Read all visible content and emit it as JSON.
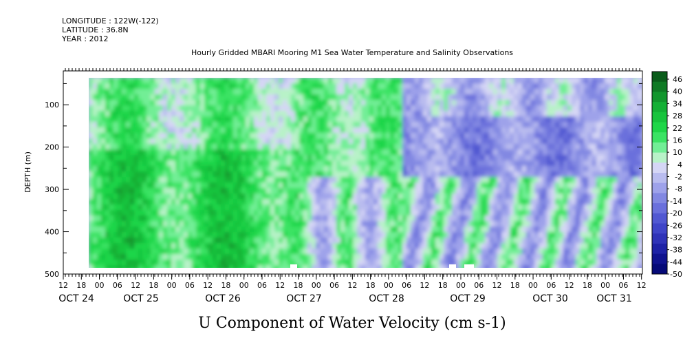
{
  "header": {
    "longitude": "LONGITUDE : 122W(-122)",
    "latitude": "LATITUDE : 36.8N",
    "year": "YEAR : 2012"
  },
  "chart_data": {
    "type": "heatmap",
    "title": "Hourly Gridded MBARI Mooring M1 Sea Water Temperature and Salinity Observations",
    "xlabel": "U Component of Water Velocity (cm s-1)",
    "ylabel": "DEPTH (m)",
    "ylim": [
      500,
      20
    ],
    "y_ticks": [
      100,
      200,
      300,
      400,
      500
    ],
    "x_hour_ticks": [
      "12",
      "18",
      "00",
      "06",
      "12",
      "18",
      "00",
      "06",
      "12",
      "18",
      "00",
      "06",
      "12",
      "18",
      "00",
      "06",
      "12",
      "18",
      "00",
      "06",
      "12",
      "18",
      "00",
      "06",
      "12",
      "18",
      "00",
      "06",
      "12",
      "18",
      "00",
      "06",
      "12"
    ],
    "x_day_labels": [
      "OCT 24",
      "OCT 25",
      "OCT 26",
      "OCT 27",
      "OCT 28",
      "OCT 29",
      "OCT 30",
      "OCT 31"
    ],
    "colorbar_labels": [
      "46",
      "40",
      "34",
      "28",
      "22",
      "16",
      "10",
      "4",
      "-2",
      "-8",
      "-14",
      "-20",
      "-26",
      "-32",
      "-38",
      "-44",
      "-50"
    ],
    "colorbar_range": [
      -50,
      46
    ],
    "data_extent": {
      "depth_min": 20,
      "depth_max": 485
    },
    "field_summary": [
      {
        "period": "OCT 24 18:00 - OCT 27 00:00",
        "depth": "20-480",
        "u_approx": "4 to 22"
      },
      {
        "period": "OCT 27 00:00 - OCT 28 12:00",
        "depth": "20-250",
        "u_approx": "4 to 16"
      },
      {
        "period": "OCT 28 18:00 - OCT 30 12:00",
        "depth": "120-250",
        "u_approx": "-26 to -8"
      },
      {
        "period": "OCT 29 - OCT 31",
        "depth": "300-480",
        "u_approx": "alternating -14 to 16"
      }
    ]
  }
}
